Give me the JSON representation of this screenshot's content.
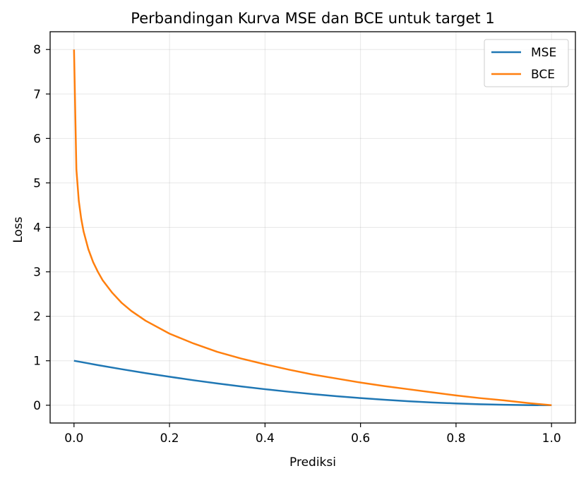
{
  "chart_data": {
    "type": "line",
    "title": "Perbandingan Kurva MSE dan BCE untuk target 1",
    "xlabel": "Prediksi",
    "ylabel": "Loss",
    "xlim": [
      -0.05,
      1.05
    ],
    "ylim": [
      -0.4,
      8.4
    ],
    "xticks": [
      0.0,
      0.2,
      0.4,
      0.6,
      0.8,
      1.0
    ],
    "xtick_labels": [
      "0.0",
      "0.2",
      "0.4",
      "0.6",
      "0.8",
      "1.0"
    ],
    "yticks": [
      0,
      1,
      2,
      3,
      4,
      5,
      6,
      7,
      8
    ],
    "ytick_labels": [
      "0",
      "1",
      "2",
      "3",
      "4",
      "5",
      "6",
      "7",
      "8"
    ],
    "grid": true,
    "legend_position": "top-right",
    "series": [
      {
        "name": "MSE",
        "color": "#1f77b4",
        "x": [
          0.0,
          0.05,
          0.1,
          0.15,
          0.2,
          0.25,
          0.3,
          0.35,
          0.4,
          0.45,
          0.5,
          0.55,
          0.6,
          0.65,
          0.7,
          0.75,
          0.8,
          0.85,
          0.9,
          0.95,
          1.0
        ],
        "y": [
          1.0,
          0.9025,
          0.81,
          0.7225,
          0.64,
          0.5625,
          0.49,
          0.4225,
          0.36,
          0.3025,
          0.25,
          0.2025,
          0.16,
          0.1225,
          0.09,
          0.0625,
          0.04,
          0.0225,
          0.01,
          0.0025,
          0.0
        ]
      },
      {
        "name": "BCE",
        "color": "#ff7f0e",
        "x": [
          0.0,
          0.005,
          0.01,
          0.015,
          0.02,
          0.03,
          0.04,
          0.05,
          0.06,
          0.08,
          0.1,
          0.12,
          0.15,
          0.2,
          0.25,
          0.3,
          0.35,
          0.4,
          0.45,
          0.5,
          0.55,
          0.6,
          0.65,
          0.7,
          0.75,
          0.8,
          0.85,
          0.9,
          0.95,
          1.0
        ],
        "y": [
          8.0,
          5.3,
          4.6,
          4.2,
          3.91,
          3.51,
          3.22,
          3.0,
          2.81,
          2.53,
          2.3,
          2.12,
          1.9,
          1.61,
          1.39,
          1.2,
          1.05,
          0.92,
          0.8,
          0.69,
          0.6,
          0.51,
          0.43,
          0.36,
          0.29,
          0.22,
          0.16,
          0.11,
          0.05,
          0.0
        ]
      }
    ]
  }
}
